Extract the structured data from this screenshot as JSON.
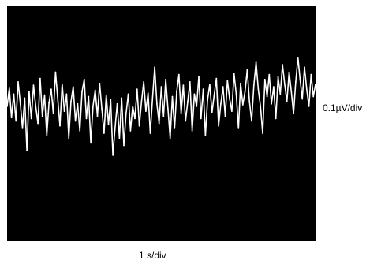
{
  "chart_data": {
    "type": "line",
    "title": "",
    "xlabel": "1 s/div",
    "ylabel": "0.1µV/div",
    "grid": false,
    "legend": "none",
    "colors": {
      "screen_background": "#000000",
      "trace": "#ffffff"
    },
    "series": [
      {
        "values": [
          0.05,
          0.42,
          -0.18,
          0.3,
          -0.25,
          0.55,
          0.1,
          -0.4,
          0.22,
          -0.85,
          0.35,
          -0.2,
          0.48,
          0.05,
          -0.3,
          0.62,
          -0.15,
          0.28,
          -0.55,
          0.12,
          0.4,
          -0.1,
          0.75,
          0.2,
          -0.35,
          0.5,
          -0.05,
          0.3,
          -0.6,
          0.15,
          0.45,
          -0.25,
          0.1,
          -0.45,
          0.35,
          0.6,
          -0.2,
          0.25,
          -0.7,
          0.05,
          0.38,
          -0.15,
          0.52,
          0.0,
          -0.5,
          0.28,
          -0.32,
          0.18,
          -0.95,
          -0.4,
          0.1,
          -0.6,
          0.22,
          -0.75,
          -0.1,
          0.3,
          -0.45,
          0.05,
          -0.2,
          0.4,
          -0.35,
          0.15,
          0.55,
          -0.05,
          0.32,
          -0.5,
          0.2,
          0.85,
          0.1,
          -0.3,
          0.45,
          -0.15,
          0.6,
          0.0,
          -0.6,
          0.25,
          -0.4,
          0.35,
          0.7,
          -0.1,
          0.48,
          -0.25,
          0.15,
          0.55,
          -0.45,
          0.3,
          0.05,
          0.65,
          -0.2,
          0.4,
          -0.55,
          0.18,
          0.5,
          -0.08,
          0.28,
          0.62,
          -0.35,
          0.1,
          0.45,
          -0.15,
          0.58,
          0.2,
          -0.05,
          0.72,
          0.3,
          -0.4,
          0.52,
          0.08,
          0.35,
          0.8,
          0.15,
          -0.25,
          0.48,
          0.95,
          0.4,
          0.05,
          -0.5,
          0.6,
          0.25,
          0.7,
          0.1,
          0.45,
          -0.2,
          0.65,
          0.3,
          0.9,
          0.5,
          0.15,
          0.75,
          0.35,
          -0.1,
          0.55,
          1.05,
          0.6,
          0.2,
          0.85,
          0.4,
          0.05,
          0.7,
          0.25,
          0.5
        ]
      }
    ]
  }
}
